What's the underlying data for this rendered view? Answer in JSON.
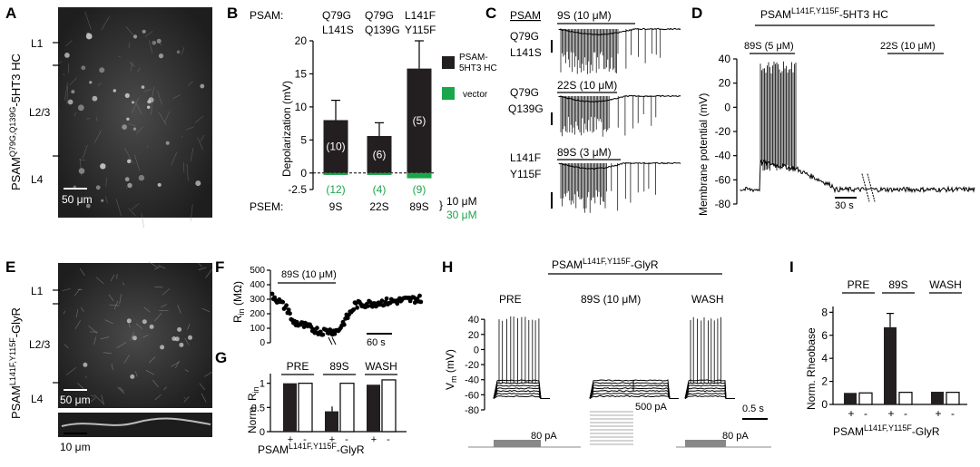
{
  "panel_labels": {
    "A": "A",
    "B": "B",
    "C": "C",
    "D": "D",
    "E": "E",
    "F": "F",
    "G": "G",
    "H": "H",
    "I": "I"
  },
  "panelA": {
    "ylabel_main": "PSAM",
    "ylabel_sup": "Q79G,Q139G",
    "ylabel_tail": "-5HT3 HC",
    "layers": [
      "L1",
      "L2/3",
      "L4"
    ],
    "scalebar": "50 μm"
  },
  "panelB": {
    "psam_label": "PSAM:",
    "psam_cols": [
      [
        "Q79G",
        "L141S"
      ],
      [
        "Q79G",
        "Q139G"
      ],
      [
        "L141F",
        "Y115F"
      ]
    ],
    "legend": [
      "PSAM-5HT3 HC",
      "vector"
    ],
    "psem_label": "PSEM:",
    "concentrations": [
      "10 μM",
      "30 μM"
    ]
  },
  "panelC": {
    "header": "PSAM",
    "rows": [
      {
        "variant": [
          "Q79G",
          "L141S"
        ],
        "drug": "9S (10 μM)"
      },
      {
        "variant": [
          "Q79G",
          "Q139G"
        ],
        "drug": "22S (10 μM)"
      },
      {
        "variant": [
          "L141F",
          "Y115F"
        ],
        "drug": "89S (3 μM)"
      }
    ]
  },
  "panelD": {
    "title_main": "PSAM",
    "title_sup": "L141F,Y115F",
    "title_tail": "-5HT3 HC",
    "drug1": "89S (5 μM)",
    "drug2": "22S (10 μM)",
    "scalebar": "30 s"
  },
  "panelE": {
    "ylabel_main": "PSAM",
    "ylabel_sup": "L141F,Y115F",
    "ylabel_tail": "-GlyR",
    "layers": [
      "L1",
      "L2/3",
      "L4"
    ],
    "scalebar": "50 μm",
    "scalebar2": "10 μm"
  },
  "panelF": {
    "ylabel_main": "R",
    "ylabel_sub": "in",
    "ylabel_unit": " (MΩ)",
    "drug": "89S (10 μM)",
    "scalebar": "60 s"
  },
  "panelG": {
    "ylabel_main": "Norm. R",
    "ylabel_sub": "in",
    "groups": [
      "PRE",
      "89S",
      "WASH"
    ],
    "xlabel_main": "PSAM",
    "xlabel_sup": "L141F,Y115F",
    "xlabel_tail": "-GlyR"
  },
  "panelH": {
    "title_main": "PSAM",
    "title_sup": "L141F,Y115F",
    "title_tail": "-GlyR",
    "conditions": [
      "PRE",
      "89S (10 μM)",
      "WASH"
    ],
    "ylabel_main": "V",
    "ylabel_sub": "m",
    "ylabel_unit": " (mV)",
    "current1": "80 pA",
    "current2": "500 pA",
    "current3": "80 pA",
    "scalebar": "0.5 s"
  },
  "panelI": {
    "ylabel": "Norm. Rheobase",
    "groups": [
      "PRE",
      "89S",
      "WASH"
    ],
    "xlabel_main": "PSAM",
    "xlabel_sup": "L141F,Y115F",
    "xlabel_tail": "-GlyR"
  },
  "chart_data": [
    {
      "type": "bar",
      "panel": "B",
      "ylabel": "Depolarization (mV)",
      "categories": [
        "9S",
        "22S",
        "89S"
      ],
      "series": [
        {
          "name": "PSAM-5HT3 HC",
          "values": [
            8.0,
            5.6,
            15.8
          ],
          "errors": [
            3.0,
            2.0,
            4.2
          ],
          "n": [
            "(10)",
            "(6)",
            "(5)"
          ]
        },
        {
          "name": "vector",
          "values": [
            -0.3,
            -0.3,
            -0.8
          ],
          "n": [
            "(12)",
            "(4)",
            "(9)"
          ]
        }
      ],
      "yticks": [
        -2.5,
        0,
        5,
        10,
        15,
        20
      ],
      "ylim": [
        -2.5,
        20
      ]
    },
    {
      "type": "scatter",
      "panel": "F",
      "ylabel": "Rin (MΩ)",
      "yticks": [
        0,
        100,
        200,
        300,
        400,
        500
      ],
      "ylim": [
        0,
        500
      ]
    },
    {
      "type": "bar",
      "panel": "G",
      "ylabel": "Norm. Rin",
      "groups": [
        "PRE",
        "89S",
        "WASH"
      ],
      "sub_categories": [
        "+",
        "-"
      ],
      "values": [
        [
          1.0,
          1.0
        ],
        [
          0.42,
          1.0
        ],
        [
          0.97,
          1.07
        ]
      ],
      "yticks": [
        0,
        0.5,
        1
      ],
      "ylim": [
        0,
        1.2
      ]
    },
    {
      "type": "line",
      "panel": "H",
      "ylabel": "Vm (mV)",
      "yticks": [
        -80,
        -60,
        -40,
        -20,
        0,
        20,
        40
      ],
      "ylim": [
        -80,
        45
      ]
    },
    {
      "type": "bar",
      "panel": "I",
      "ylabel": "Norm. Rheobase",
      "groups": [
        "PRE",
        "89S",
        "WASH"
      ],
      "sub_categories": [
        "+",
        "-"
      ],
      "values": [
        [
          1.0,
          1.0
        ],
        [
          6.7,
          1.05
        ],
        [
          1.1,
          1.05
        ]
      ],
      "errors": [
        [
          0,
          0
        ],
        [
          1.2,
          0
        ],
        [
          0,
          0
        ]
      ],
      "yticks": [
        0,
        2,
        4,
        6,
        8
      ],
      "ylim": [
        0,
        8.5
      ]
    }
  ]
}
